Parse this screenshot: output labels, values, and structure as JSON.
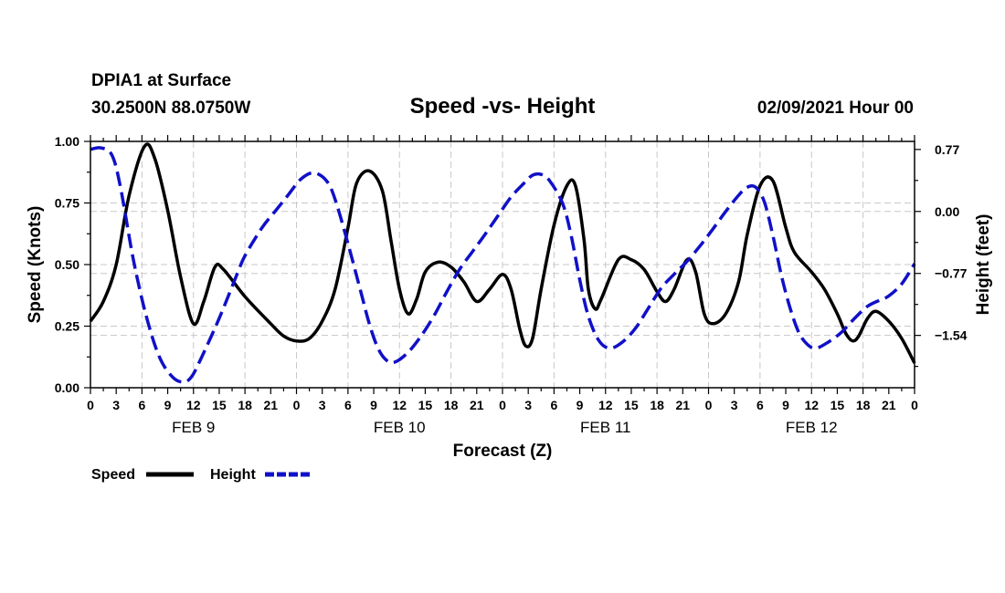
{
  "header": {
    "station": "DPIA1 at Surface",
    "coords": "30.2500N 88.0750W",
    "title": "Speed -vs- Height",
    "date": "02/09/2021 Hour 00"
  },
  "legend": {
    "speed": "Speed",
    "height": "Height"
  },
  "colors": {
    "speed": "#000000",
    "height": "#1010c8"
  },
  "chart_data": {
    "type": "line",
    "title": "Speed -vs- Height",
    "xlabel": "Forecast (Z)",
    "ylabel": "Speed (Knots)",
    "y2label": "Height (feet)",
    "xlim": [
      0,
      96
    ],
    "ylim": [
      0,
      1
    ],
    "y2lim": [
      -2.19,
      0.87
    ],
    "grid": true,
    "legend_position": "bottom-left",
    "x_tick_values": [
      0,
      3,
      6,
      9,
      12,
      15,
      18,
      21,
      24,
      27,
      30,
      33,
      36,
      39,
      42,
      45,
      48,
      51,
      54,
      57,
      60,
      63,
      66,
      69,
      72,
      75,
      78,
      81,
      84,
      87,
      90,
      93,
      96
    ],
    "x_tick_labels": [
      "0",
      "3",
      "6",
      "9",
      "12",
      "15",
      "18",
      "21",
      "0",
      "3",
      "6",
      "9",
      "12",
      "15",
      "18",
      "21",
      "0",
      "3",
      "6",
      "9",
      "12",
      "15",
      "18",
      "21",
      "0",
      "3",
      "6",
      "9",
      "12",
      "15",
      "18",
      "21",
      "0"
    ],
    "day_labels": [
      {
        "x": 12,
        "label": "FEB 9"
      },
      {
        "x": 36,
        "label": "FEB 10"
      },
      {
        "x": 60,
        "label": "FEB 11"
      },
      {
        "x": 84,
        "label": "FEB 12"
      }
    ],
    "y_ticks": [
      {
        "value": 0.0,
        "label": "0.00"
      },
      {
        "value": 0.25,
        "label": "0.25"
      },
      {
        "value": 0.5,
        "label": "0.50"
      },
      {
        "value": 0.75,
        "label": "0.75"
      },
      {
        "value": 1.0,
        "label": "1.00"
      }
    ],
    "y2_ticks": [
      {
        "value": 0.77,
        "label": "0.77"
      },
      {
        "value": 0.0,
        "label": "0.00"
      },
      {
        "value": -0.77,
        "label": "−0.77"
      },
      {
        "value": -1.54,
        "label": "−1.54"
      }
    ],
    "series": [
      {
        "name": "Speed",
        "axis": "left",
        "style": "solid",
        "points": [
          [
            0,
            0.27
          ],
          [
            1.5,
            0.35
          ],
          [
            3,
            0.5
          ],
          [
            4.5,
            0.78
          ],
          [
            6.3,
            0.98
          ],
          [
            7.5,
            0.93
          ],
          [
            9,
            0.72
          ],
          [
            10.5,
            0.45
          ],
          [
            12,
            0.26
          ],
          [
            13.2,
            0.35
          ],
          [
            14.5,
            0.49
          ],
          [
            15.5,
            0.48
          ],
          [
            18,
            0.37
          ],
          [
            21,
            0.26
          ],
          [
            22.5,
            0.21
          ],
          [
            24,
            0.19
          ],
          [
            25.5,
            0.2
          ],
          [
            27,
            0.27
          ],
          [
            28.5,
            0.4
          ],
          [
            30,
            0.65
          ],
          [
            31,
            0.83
          ],
          [
            32.5,
            0.88
          ],
          [
            34,
            0.8
          ],
          [
            35,
            0.6
          ],
          [
            36,
            0.4
          ],
          [
            37,
            0.3
          ],
          [
            38,
            0.36
          ],
          [
            39,
            0.47
          ],
          [
            40.5,
            0.51
          ],
          [
            42,
            0.49
          ],
          [
            43.5,
            0.43
          ],
          [
            45,
            0.35
          ],
          [
            46.5,
            0.4
          ],
          [
            48,
            0.46
          ],
          [
            49,
            0.4
          ],
          [
            50,
            0.24
          ],
          [
            50.7,
            0.17
          ],
          [
            51.5,
            0.2
          ],
          [
            52.5,
            0.4
          ],
          [
            54,
            0.66
          ],
          [
            55.5,
            0.82
          ],
          [
            56.5,
            0.82
          ],
          [
            57.5,
            0.6
          ],
          [
            58,
            0.4
          ],
          [
            58.8,
            0.32
          ],
          [
            59.5,
            0.36
          ],
          [
            61.5,
            0.52
          ],
          [
            63,
            0.52
          ],
          [
            64.5,
            0.48
          ],
          [
            66,
            0.39
          ],
          [
            67,
            0.35
          ],
          [
            68,
            0.4
          ],
          [
            69.5,
            0.52
          ],
          [
            70.5,
            0.47
          ],
          [
            71.5,
            0.3
          ],
          [
            72.5,
            0.26
          ],
          [
            74,
            0.3
          ],
          [
            75.5,
            0.43
          ],
          [
            76.5,
            0.62
          ],
          [
            78,
            0.82
          ],
          [
            79.5,
            0.84
          ],
          [
            81,
            0.65
          ],
          [
            82,
            0.55
          ],
          [
            84,
            0.47
          ],
          [
            85.5,
            0.4
          ],
          [
            87,
            0.3
          ],
          [
            88,
            0.22
          ],
          [
            88.8,
            0.19
          ],
          [
            89.5,
            0.21
          ],
          [
            90.5,
            0.28
          ],
          [
            91.5,
            0.31
          ],
          [
            93,
            0.27
          ],
          [
            94.5,
            0.2
          ],
          [
            96,
            0.1
          ]
        ]
      },
      {
        "name": "Height",
        "axis": "right",
        "style": "dashed",
        "points": [
          [
            0,
            0.77
          ],
          [
            1.2,
            0.79
          ],
          [
            2.5,
            0.7
          ],
          [
            3.5,
            0.3
          ],
          [
            5,
            -0.6
          ],
          [
            6.5,
            -1.3
          ],
          [
            8,
            -1.8
          ],
          [
            9.5,
            -2.05
          ],
          [
            10.8,
            -2.12
          ],
          [
            11.8,
            -2.05
          ],
          [
            13,
            -1.8
          ],
          [
            14.5,
            -1.45
          ],
          [
            15.5,
            -1.2
          ],
          [
            17,
            -0.8
          ],
          [
            18,
            -0.55
          ],
          [
            20,
            -0.2
          ],
          [
            21.5,
            0.0
          ],
          [
            23,
            0.2
          ],
          [
            24.5,
            0.4
          ],
          [
            26,
            0.48
          ],
          [
            27.5,
            0.38
          ],
          [
            28.5,
            0.15
          ],
          [
            30,
            -0.4
          ],
          [
            31.5,
            -1.0
          ],
          [
            32.5,
            -1.4
          ],
          [
            33.5,
            -1.7
          ],
          [
            34.5,
            -1.85
          ],
          [
            35.5,
            -1.87
          ],
          [
            37,
            -1.75
          ],
          [
            38.5,
            -1.55
          ],
          [
            40,
            -1.3
          ],
          [
            41.5,
            -1.0
          ],
          [
            43,
            -0.72
          ],
          [
            44.5,
            -0.5
          ],
          [
            46,
            -0.28
          ],
          [
            47.5,
            -0.05
          ],
          [
            49,
            0.18
          ],
          [
            50.5,
            0.35
          ],
          [
            51.5,
            0.45
          ],
          [
            52.5,
            0.46
          ],
          [
            53.5,
            0.38
          ],
          [
            55,
            0.1
          ],
          [
            56,
            -0.3
          ],
          [
            57,
            -0.85
          ],
          [
            58,
            -1.3
          ],
          [
            59.2,
            -1.6
          ],
          [
            60.5,
            -1.7
          ],
          [
            62,
            -1.62
          ],
          [
            63.5,
            -1.45
          ],
          [
            65,
            -1.2
          ],
          [
            66.5,
            -0.95
          ],
          [
            68,
            -0.78
          ],
          [
            69.5,
            -0.62
          ],
          [
            71,
            -0.43
          ],
          [
            72.5,
            -0.22
          ],
          [
            74,
            0.0
          ],
          [
            75.5,
            0.2
          ],
          [
            76.5,
            0.3
          ],
          [
            77.5,
            0.3
          ],
          [
            78.5,
            0.12
          ],
          [
            79.5,
            -0.3
          ],
          [
            80.5,
            -0.8
          ],
          [
            81.5,
            -1.2
          ],
          [
            82.5,
            -1.5
          ],
          [
            83.5,
            -1.65
          ],
          [
            84.5,
            -1.7
          ],
          [
            86,
            -1.62
          ],
          [
            87.5,
            -1.5
          ],
          [
            89,
            -1.33
          ],
          [
            90.5,
            -1.18
          ],
          [
            92,
            -1.1
          ],
          [
            93,
            -1.05
          ],
          [
            94.5,
            -0.9
          ],
          [
            96,
            -0.65
          ]
        ]
      }
    ]
  }
}
